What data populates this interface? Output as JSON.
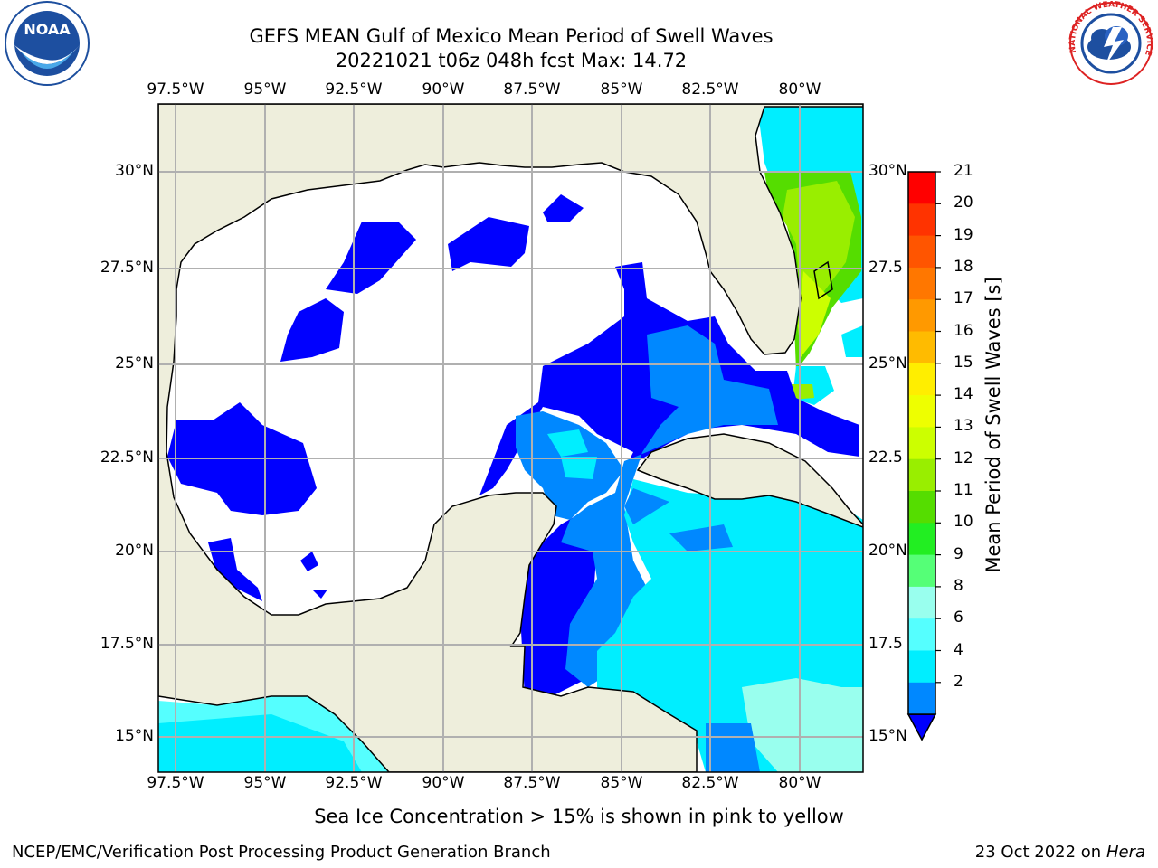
{
  "title": {
    "line1": "GEFS MEAN Gulf of Mexico Mean Period of Swell Waves",
    "line2": "20221021 t06z 048h fcst   Max: 14.72"
  },
  "map": {
    "lon_labels": [
      "97.5°W",
      "95°W",
      "92.5°W",
      "90°W",
      "87.5°W",
      "85°W",
      "82.5°W",
      "80°W"
    ],
    "lat_labels_left": [
      "30°N",
      "27.5°N",
      "25°N",
      "22.5°N",
      "20°N",
      "17.5°N",
      "15°N"
    ],
    "lat_labels_right": [
      "30°N",
      "27.5",
      "25°N",
      "22.5",
      "20°N",
      "17.5",
      "15°N"
    ],
    "land_color": "#eeeedc",
    "grid_color": "#b0b0b0"
  },
  "colorbar": {
    "title": "Mean Period of Swell Waves [s]",
    "ticks": [
      "21",
      "20",
      "19",
      "18",
      "17",
      "16",
      "15",
      "14",
      "13",
      "12",
      "11",
      "10",
      "9",
      "8",
      "6",
      "4",
      "2"
    ],
    "colors": [
      "#ff0000",
      "#ff3300",
      "#ff5500",
      "#ff7700",
      "#ff9900",
      "#ffbb00",
      "#ffee00",
      "#eeff00",
      "#ccff00",
      "#99ee00",
      "#55dd00",
      "#22ee22",
      "#55ff77",
      "#99ffee",
      "#55ffff",
      "#00eeff",
      "#0088ff"
    ],
    "extend_color": "#0000ff"
  },
  "note": "Sea Ice Concentration > 15% is shown in pink to yellow",
  "footer": {
    "left": "NCEP/EMC/Verification Post Processing Product Generation Branch",
    "right_date": "23 Oct 2022 on ",
    "right_host": "Hera"
  },
  "logos": {
    "noaa_text": "NOAA",
    "nws_text": "NATIONAL WEATHER SERVICE"
  }
}
